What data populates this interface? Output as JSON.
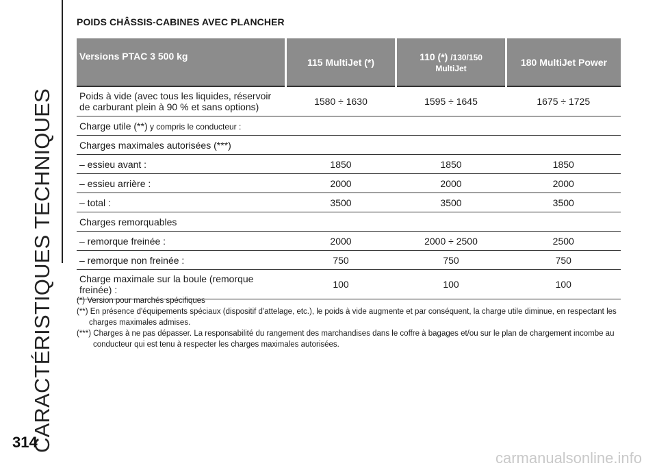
{
  "side": {
    "title": "CARACTÉRISTIQUES TECHNIQUES",
    "page_number": "314"
  },
  "watermark": "carmanualsonline.info",
  "section_title": "POIDS CHÂSSIS-CABINES AVEC PLANCHER",
  "table": {
    "header": {
      "col0": "Versions PTAC 3 500 kg",
      "col1": "115 MultiJet (*)",
      "col2_main": "110 (*)",
      "col2_sub": "/130/150",
      "col2_line2": "MultiJet",
      "col3": "180 MultiJet Power"
    },
    "rows": [
      {
        "label": "Poids à vide (avec tous les liquides, réservoir de carburant plein à 90 % et sans options)",
        "values": [
          "1580 ÷ 1630",
          "1595 ÷ 1645",
          "1675 ÷ 1725"
        ]
      },
      {
        "label": "Charge utile (**)",
        "label_small": " y compris le conducteur :",
        "values": [
          "",
          "",
          ""
        ]
      },
      {
        "label": "Charges maximales autorisées (***)",
        "values": [
          "",
          "",
          ""
        ]
      },
      {
        "label": "– essieu avant :",
        "values": [
          "1850",
          "1850",
          "1850"
        ]
      },
      {
        "label": "– essieu arrière :",
        "values": [
          "2000",
          "2000",
          "2000"
        ]
      },
      {
        "label": "– total :",
        "values": [
          "3500",
          "3500",
          "3500"
        ]
      },
      {
        "label": "Charges remorquables",
        "values": [
          "",
          "",
          ""
        ]
      },
      {
        "label": "– remorque freinée :",
        "values": [
          "2000",
          "2000 ÷ 2500",
          "2500"
        ]
      },
      {
        "label": "– remorque non freinée :",
        "values": [
          "750",
          "750",
          "750"
        ]
      },
      {
        "label": "Charge maximale sur la boule (remorque freinée) :",
        "values": [
          "100",
          "100",
          "100"
        ]
      }
    ]
  },
  "notes": [
    "(*) Version pour marchés spécifiques",
    "(**) En présence d'équipements spéciaux (dispositif d'attelage, etc.), le poids à vide augmente et par conséquent, la charge utile diminue, en respectant les charges maximales admises.",
    "(***) Charges à ne pas dépasser. La responsabilité du rangement des marchandises dans le coffre à bagages et/ou sur le plan de chargement incombe au conducteur qui est tenu à respecter les charges maximales autorisées."
  ]
}
